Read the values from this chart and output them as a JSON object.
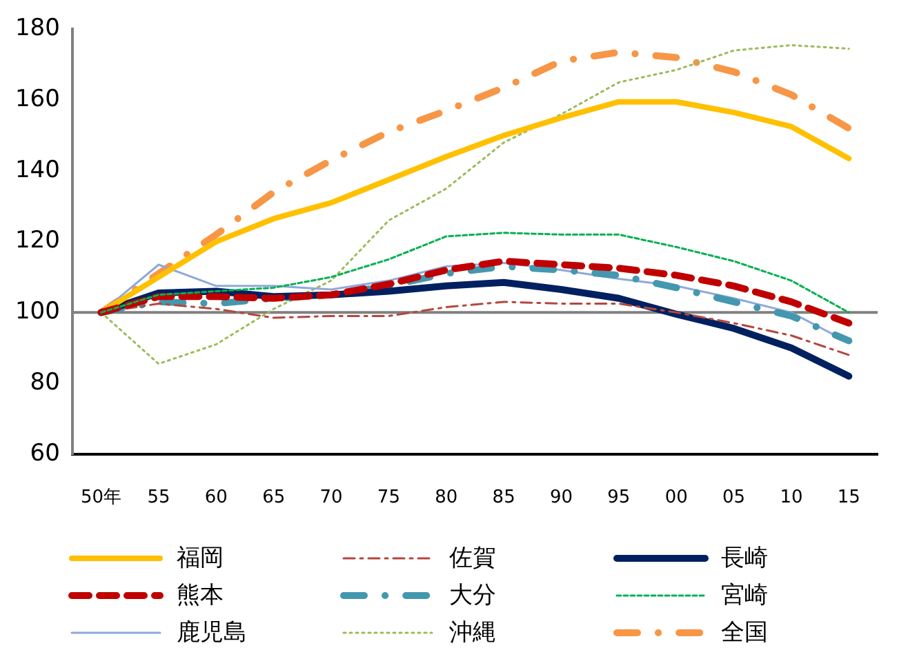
{
  "chart_data": {
    "type": "line",
    "categories": [
      "50年",
      "55",
      "60",
      "65",
      "70",
      "75",
      "80",
      "85",
      "90",
      "95",
      "00",
      "05",
      "10",
      "15"
    ],
    "ylim": [
      60,
      180
    ],
    "yticks": [
      60,
      80,
      100,
      120,
      140,
      160,
      180
    ],
    "grid": false,
    "legend": "bottom",
    "marker": "none",
    "ref_lines": [
      {
        "axis": "y",
        "value": 100,
        "color": "#808080"
      }
    ],
    "series": [
      {
        "name": "福岡",
        "color": "#ffc000",
        "line_style": "solid",
        "values": [
          100,
          110,
          120,
          126.5,
          131,
          137.5,
          144,
          150,
          155,
          159.5,
          159.5,
          156.5,
          152.5,
          143.5
        ]
      },
      {
        "name": "佐賀",
        "color": "#b3473d",
        "line_style": "dashdot",
        "values": [
          100,
          102.5,
          101,
          98.5,
          99,
          99,
          101.5,
          103,
          102.5,
          102.5,
          100,
          97,
          93.5,
          88
        ]
      },
      {
        "name": "長崎",
        "color": "#002060",
        "line_style": "solid",
        "values": [
          100,
          105.5,
          106,
          104.5,
          105,
          106,
          107.5,
          108.5,
          106.5,
          104,
          99.5,
          95.5,
          90,
          82
        ]
      },
      {
        "name": "熊本",
        "color": "#c00000",
        "line_style": "dashed",
        "values": [
          100,
          104.5,
          104.5,
          104,
          105,
          108,
          112,
          114.5,
          113.5,
          112.5,
          110.5,
          107.5,
          103,
          97
        ]
      },
      {
        "name": "大分",
        "color": "#4398ae",
        "line_style": "dashdot",
        "values": [
          100,
          103,
          102.5,
          104,
          105,
          107.5,
          111,
          113,
          112,
          110.5,
          107,
          103,
          99,
          92
        ]
      },
      {
        "name": "宮崎",
        "color": "#00b050",
        "line_style": "dashed",
        "values": [
          100,
          105,
          106,
          107,
          110,
          115,
          121.5,
          122.5,
          122,
          122,
          118.5,
          114.5,
          109,
          100
        ]
      },
      {
        "name": "鹿児島",
        "color": "#8ea9db",
        "line_style": "solid",
        "values": [
          100,
          113.5,
          107.5,
          107.5,
          106.5,
          109,
          113,
          114,
          112,
          109.5,
          107.5,
          104,
          100,
          91.5
        ]
      },
      {
        "name": "沖縄",
        "color": "#9bbb59",
        "line_style": "dotted",
        "values": [
          100,
          85.5,
          91,
          101,
          109,
          126,
          135,
          148,
          156,
          165,
          168.5,
          174,
          175.5,
          174.5
        ]
      },
      {
        "name": "全国",
        "color": "#f79646",
        "line_style": "dashdot",
        "values": [
          100,
          111,
          122,
          134,
          143,
          151,
          157,
          163.5,
          171,
          173.5,
          172,
          168,
          161.5,
          152
        ]
      }
    ]
  }
}
